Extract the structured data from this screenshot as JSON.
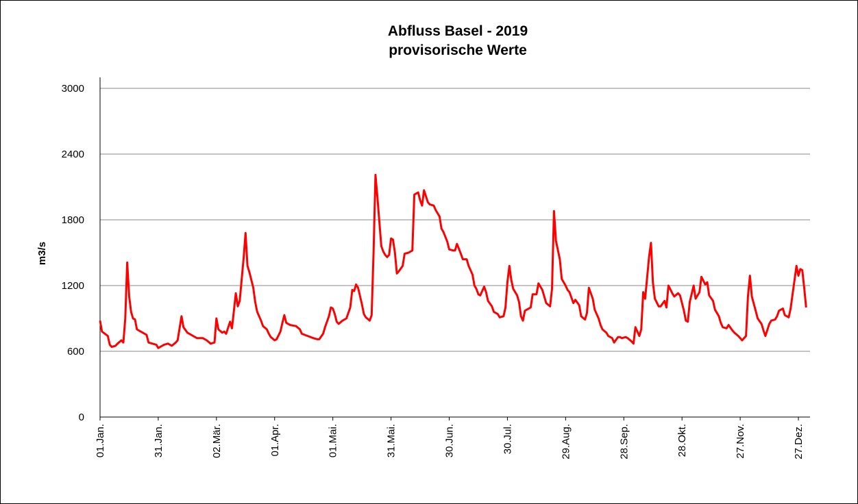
{
  "chart_data": {
    "type": "line",
    "title": "Abfluss Basel - 2019",
    "subtitle": "provisorische Werte",
    "ylabel": "m3/s",
    "color": "#ff0000",
    "grid": true,
    "xlim": [
      0,
      366
    ],
    "ylim": [
      0,
      3000
    ],
    "yticks": [
      0,
      600,
      1200,
      1800,
      2400,
      3000
    ],
    "xticks": [
      {
        "value": 0,
        "label": "01.Jan."
      },
      {
        "value": 30,
        "label": "31.Jan."
      },
      {
        "value": 60,
        "label": "02.Mär."
      },
      {
        "value": 90,
        "label": "01.Apr."
      },
      {
        "value": 120,
        "label": "01.Mai."
      },
      {
        "value": 150,
        "label": "31.Mai."
      },
      {
        "value": 180,
        "label": "30.Jun."
      },
      {
        "value": 210,
        "label": "30.Jul."
      },
      {
        "value": 240,
        "label": "29.Aug."
      },
      {
        "value": 270,
        "label": "28.Sep."
      },
      {
        "value": 300,
        "label": "28.Okt."
      },
      {
        "value": 330,
        "label": "27.Nov."
      },
      {
        "value": 360,
        "label": "27.Dez."
      }
    ],
    "x": [
      0,
      1,
      4,
      5,
      6,
      8,
      9,
      11,
      12,
      13,
      14,
      15,
      16,
      17,
      18,
      19,
      21,
      22,
      24,
      25,
      27,
      29,
      30,
      32,
      33,
      35,
      37,
      39,
      40,
      42,
      43,
      45,
      47,
      50,
      53,
      55,
      57,
      59,
      60,
      61,
      63,
      64,
      65,
      67,
      68,
      70,
      71,
      72,
      74,
      75,
      76,
      77,
      79,
      80,
      81,
      83,
      84,
      86,
      87,
      88,
      90,
      91,
      93,
      94,
      95,
      96,
      98,
      101,
      103,
      104,
      107,
      110,
      112,
      113,
      115,
      116,
      118,
      119,
      120,
      121,
      122,
      123,
      125,
      126,
      127,
      129,
      130,
      131,
      132,
      133,
      135,
      136,
      137,
      139,
      140,
      141,
      142,
      143,
      144,
      145,
      146,
      147,
      148,
      149,
      150,
      151,
      152,
      153,
      154,
      156,
      157,
      159,
      161,
      162,
      164,
      165,
      166,
      167,
      169,
      170,
      172,
      173,
      175,
      176,
      177,
      179,
      180,
      182,
      183,
      184,
      186,
      187,
      189,
      190,
      192,
      193,
      194,
      195,
      196,
      198,
      199,
      200,
      202,
      203,
      205,
      206,
      208,
      209,
      210,
      211,
      212,
      213,
      215,
      216,
      217,
      218,
      219,
      221,
      222,
      223,
      225,
      226,
      228,
      229,
      230,
      232,
      233,
      234,
      235,
      237,
      238,
      240,
      241,
      242,
      244,
      245,
      247,
      248,
      250,
      251,
      252,
      254,
      255,
      257,
      258,
      259,
      261,
      262,
      264,
      265,
      267,
      268,
      269,
      271,
      272,
      274,
      275,
      276,
      278,
      279,
      280,
      281,
      283,
      284,
      285,
      286,
      288,
      289,
      291,
      292,
      293,
      295,
      296,
      298,
      299,
      301,
      302,
      303,
      304,
      306,
      307,
      309,
      310,
      312,
      313,
      314,
      316,
      317,
      319,
      320,
      321,
      323,
      324,
      326,
      327,
      329,
      330,
      331,
      333,
      334,
      335,
      336,
      338,
      339,
      341,
      342,
      343,
      345,
      346,
      348,
      349,
      350,
      352,
      353,
      355,
      356,
      357,
      358,
      359,
      360,
      361,
      362,
      363,
      364
    ],
    "values": [
      880,
      780,
      740,
      660,
      640,
      650,
      670,
      700,
      680,
      900,
      1410,
      1100,
      960,
      900,
      890,
      800,
      780,
      770,
      750,
      680,
      670,
      660,
      630,
      650,
      660,
      670,
      650,
      680,
      700,
      920,
      820,
      770,
      750,
      720,
      720,
      700,
      670,
      680,
      900,
      800,
      770,
      780,
      760,
      870,
      810,
      1130,
      1010,
      1060,
      1450,
      1680,
      1380,
      1320,
      1180,
      1050,
      960,
      880,
      830,
      800,
      760,
      730,
      700,
      710,
      780,
      860,
      930,
      860,
      840,
      830,
      800,
      760,
      740,
      720,
      710,
      710,
      760,
      820,
      920,
      1000,
      990,
      940,
      870,
      850,
      880,
      890,
      900,
      1000,
      1160,
      1150,
      1210,
      1180,
      1030,
      940,
      910,
      880,
      930,
      1500,
      2210,
      2000,
      1780,
      1560,
      1510,
      1480,
      1460,
      1480,
      1630,
      1620,
      1500,
      1310,
      1330,
      1380,
      1490,
      1500,
      1520,
      2030,
      2050,
      1980,
      1930,
      2070,
      1960,
      1940,
      1930,
      1890,
      1830,
      1720,
      1690,
      1600,
      1530,
      1520,
      1520,
      1580,
      1490,
      1440,
      1440,
      1380,
      1300,
      1200,
      1170,
      1120,
      1110,
      1190,
      1140,
      1060,
      1010,
      960,
      940,
      910,
      920,
      1000,
      1230,
      1380,
      1250,
      1170,
      1110,
      1050,
      920,
      880,
      970,
      990,
      1000,
      1120,
      1120,
      1220,
      1160,
      1100,
      1040,
      1010,
      1170,
      1880,
      1610,
      1440,
      1260,
      1200,
      1160,
      1140,
      1040,
      1070,
      1020,
      920,
      890,
      950,
      1180,
      1080,
      980,
      900,
      840,
      800,
      770,
      740,
      720,
      680,
      730,
      730,
      720,
      730,
      720,
      690,
      670,
      820,
      740,
      800,
      1140,
      1080,
      1460,
      1590,
      1230,
      1080,
      1010,
      1010,
      1060,
      1000,
      1200,
      1130,
      1100,
      1130,
      1110,
      970,
      880,
      870,
      1050,
      1200,
      1080,
      1140,
      1280,
      1210,
      1230,
      1110,
      1060,
      980,
      920,
      860,
      820,
      810,
      840,
      790,
      770,
      740,
      720,
      700,
      740,
      1100,
      1290,
      1100,
      970,
      900,
      850,
      790,
      740,
      850,
      880,
      890,
      920,
      970,
      990,
      930,
      910,
      990,
      1120,
      1250,
      1380,
      1290,
      1350,
      1340,
      1180,
      1000
    ]
  }
}
